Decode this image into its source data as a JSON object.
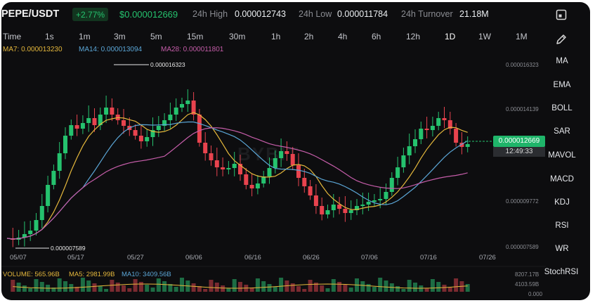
{
  "header": {
    "pair": "PEPE/USDT",
    "change": "+2.77%",
    "price": "$0.000012669",
    "high_label": "24h High",
    "high_value": "0.000012743",
    "low_label": "24h Low",
    "low_value": "0.000011784",
    "turnover_label": "24h Turnover",
    "turnover_value": "21.18M"
  },
  "timeframes": [
    "Time",
    "1s",
    "1m",
    "3m",
    "5m",
    "15m",
    "30m",
    "1h",
    "2h",
    "4h",
    "6h",
    "12h",
    "1D",
    "1W",
    "1M"
  ],
  "active_timeframe": "1D",
  "ma_legend": {
    "ma7": "MA7: 0.000013230",
    "ma14": "MA14: 0.000013094",
    "ma28": "MA28: 0.000011801"
  },
  "indicators": [
    "MA",
    "EMA",
    "BOLL",
    "SAR",
    "MAVOL",
    "MACD",
    "KDJ",
    "RSI",
    "WR",
    "StochRSI"
  ],
  "price_axis": [
    "0.000016323",
    "0.000014139",
    "0.000009772",
    "0.000007589"
  ],
  "date_axis": [
    "05/07",
    "05/17",
    "05/27",
    "06/06",
    "06/16",
    "06/26",
    "07/06",
    "07/16",
    "07/26"
  ],
  "annotations": {
    "high": "0.000016323",
    "low": "0.000007589"
  },
  "current_price_tag": "0.000012669",
  "countdown": "12:49:33",
  "watermark": "BYBIT",
  "volume_legend": {
    "volume": "VOLUME: 565.96B",
    "ma5": "MA5: 2981.99B",
    "ma10": "MA10: 3409.56B"
  },
  "volume_axis": [
    "8207.17B",
    "4103.59B",
    "0.000"
  ],
  "colors": {
    "up": "#25c26e",
    "down": "#e8434e",
    "ma7": "#e5b83c",
    "ma14": "#5ba6d6",
    "ma28": "#c55da9"
  },
  "icons": {
    "top": "fullscreen-icon",
    "pen": "pencil-icon"
  }
}
